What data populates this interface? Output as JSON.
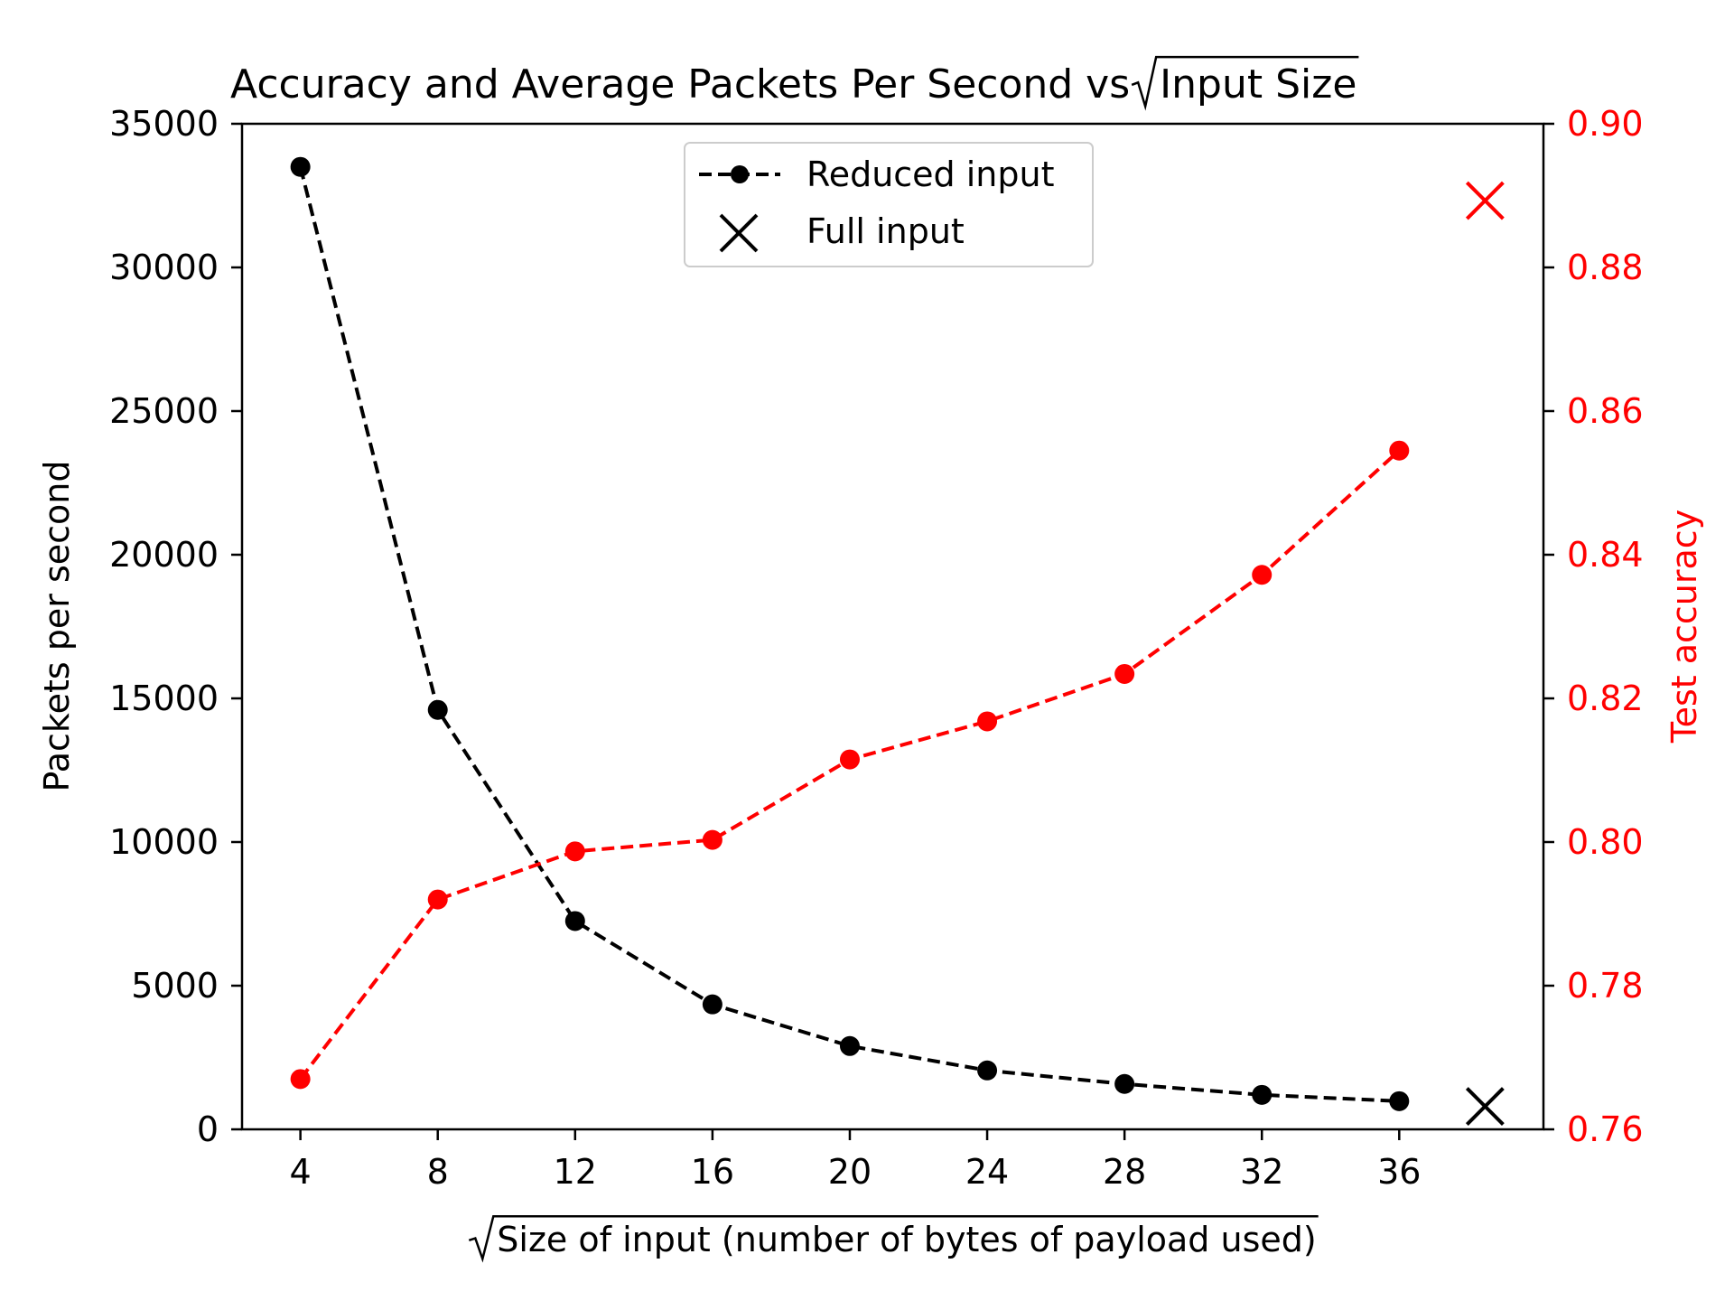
{
  "chart_data": {
    "type": "line",
    "title_prefix": "Accuracy and Average Packets Per Second vs ",
    "title_sqrt_term": "Input Size",
    "xlabel_sqrt_term": "Size of input (number of bytes of payload used)",
    "ylabel_left": "Packets per second",
    "ylabel_right": "Test accuracy",
    "x_ticks": [
      "4",
      "8",
      "12",
      "16",
      "20",
      "24",
      "28",
      "32",
      "36"
    ],
    "y_left_ticks": [
      "0",
      "5000",
      "10000",
      "15000",
      "20000",
      "25000",
      "30000",
      "35000"
    ],
    "y_right_ticks": [
      "0.76",
      "0.78",
      "0.80",
      "0.82",
      "0.84",
      "0.86",
      "0.88",
      "0.90"
    ],
    "xlim": [
      2.3,
      40.2
    ],
    "ylim_left": [
      0,
      35000
    ],
    "ylim_right": [
      0.76,
      0.9
    ],
    "legend_position": "upper-center",
    "colors": {
      "packets": "#000000",
      "accuracy": "#ff0000"
    },
    "series": [
      {
        "name": "Reduced input",
        "axis": "left",
        "style": "dashed-dot-markers",
        "x": [
          4,
          8,
          12,
          16,
          20,
          24,
          28,
          32,
          36
        ],
        "values": [
          33500,
          14600,
          7250,
          4350,
          2900,
          2050,
          1580,
          1200,
          980
        ]
      },
      {
        "axis": "right",
        "style": "dashed-dot-markers",
        "x": [
          4,
          8,
          12,
          16,
          20,
          24,
          28,
          32,
          36
        ],
        "values": [
          0.767,
          0.792,
          0.7987,
          0.8003,
          0.8115,
          0.8168,
          0.8234,
          0.8372,
          0.8545
        ]
      }
    ],
    "full_input": {
      "name": "Full input",
      "x": 38.5,
      "packets": 800,
      "accuracy": 0.8893
    }
  }
}
